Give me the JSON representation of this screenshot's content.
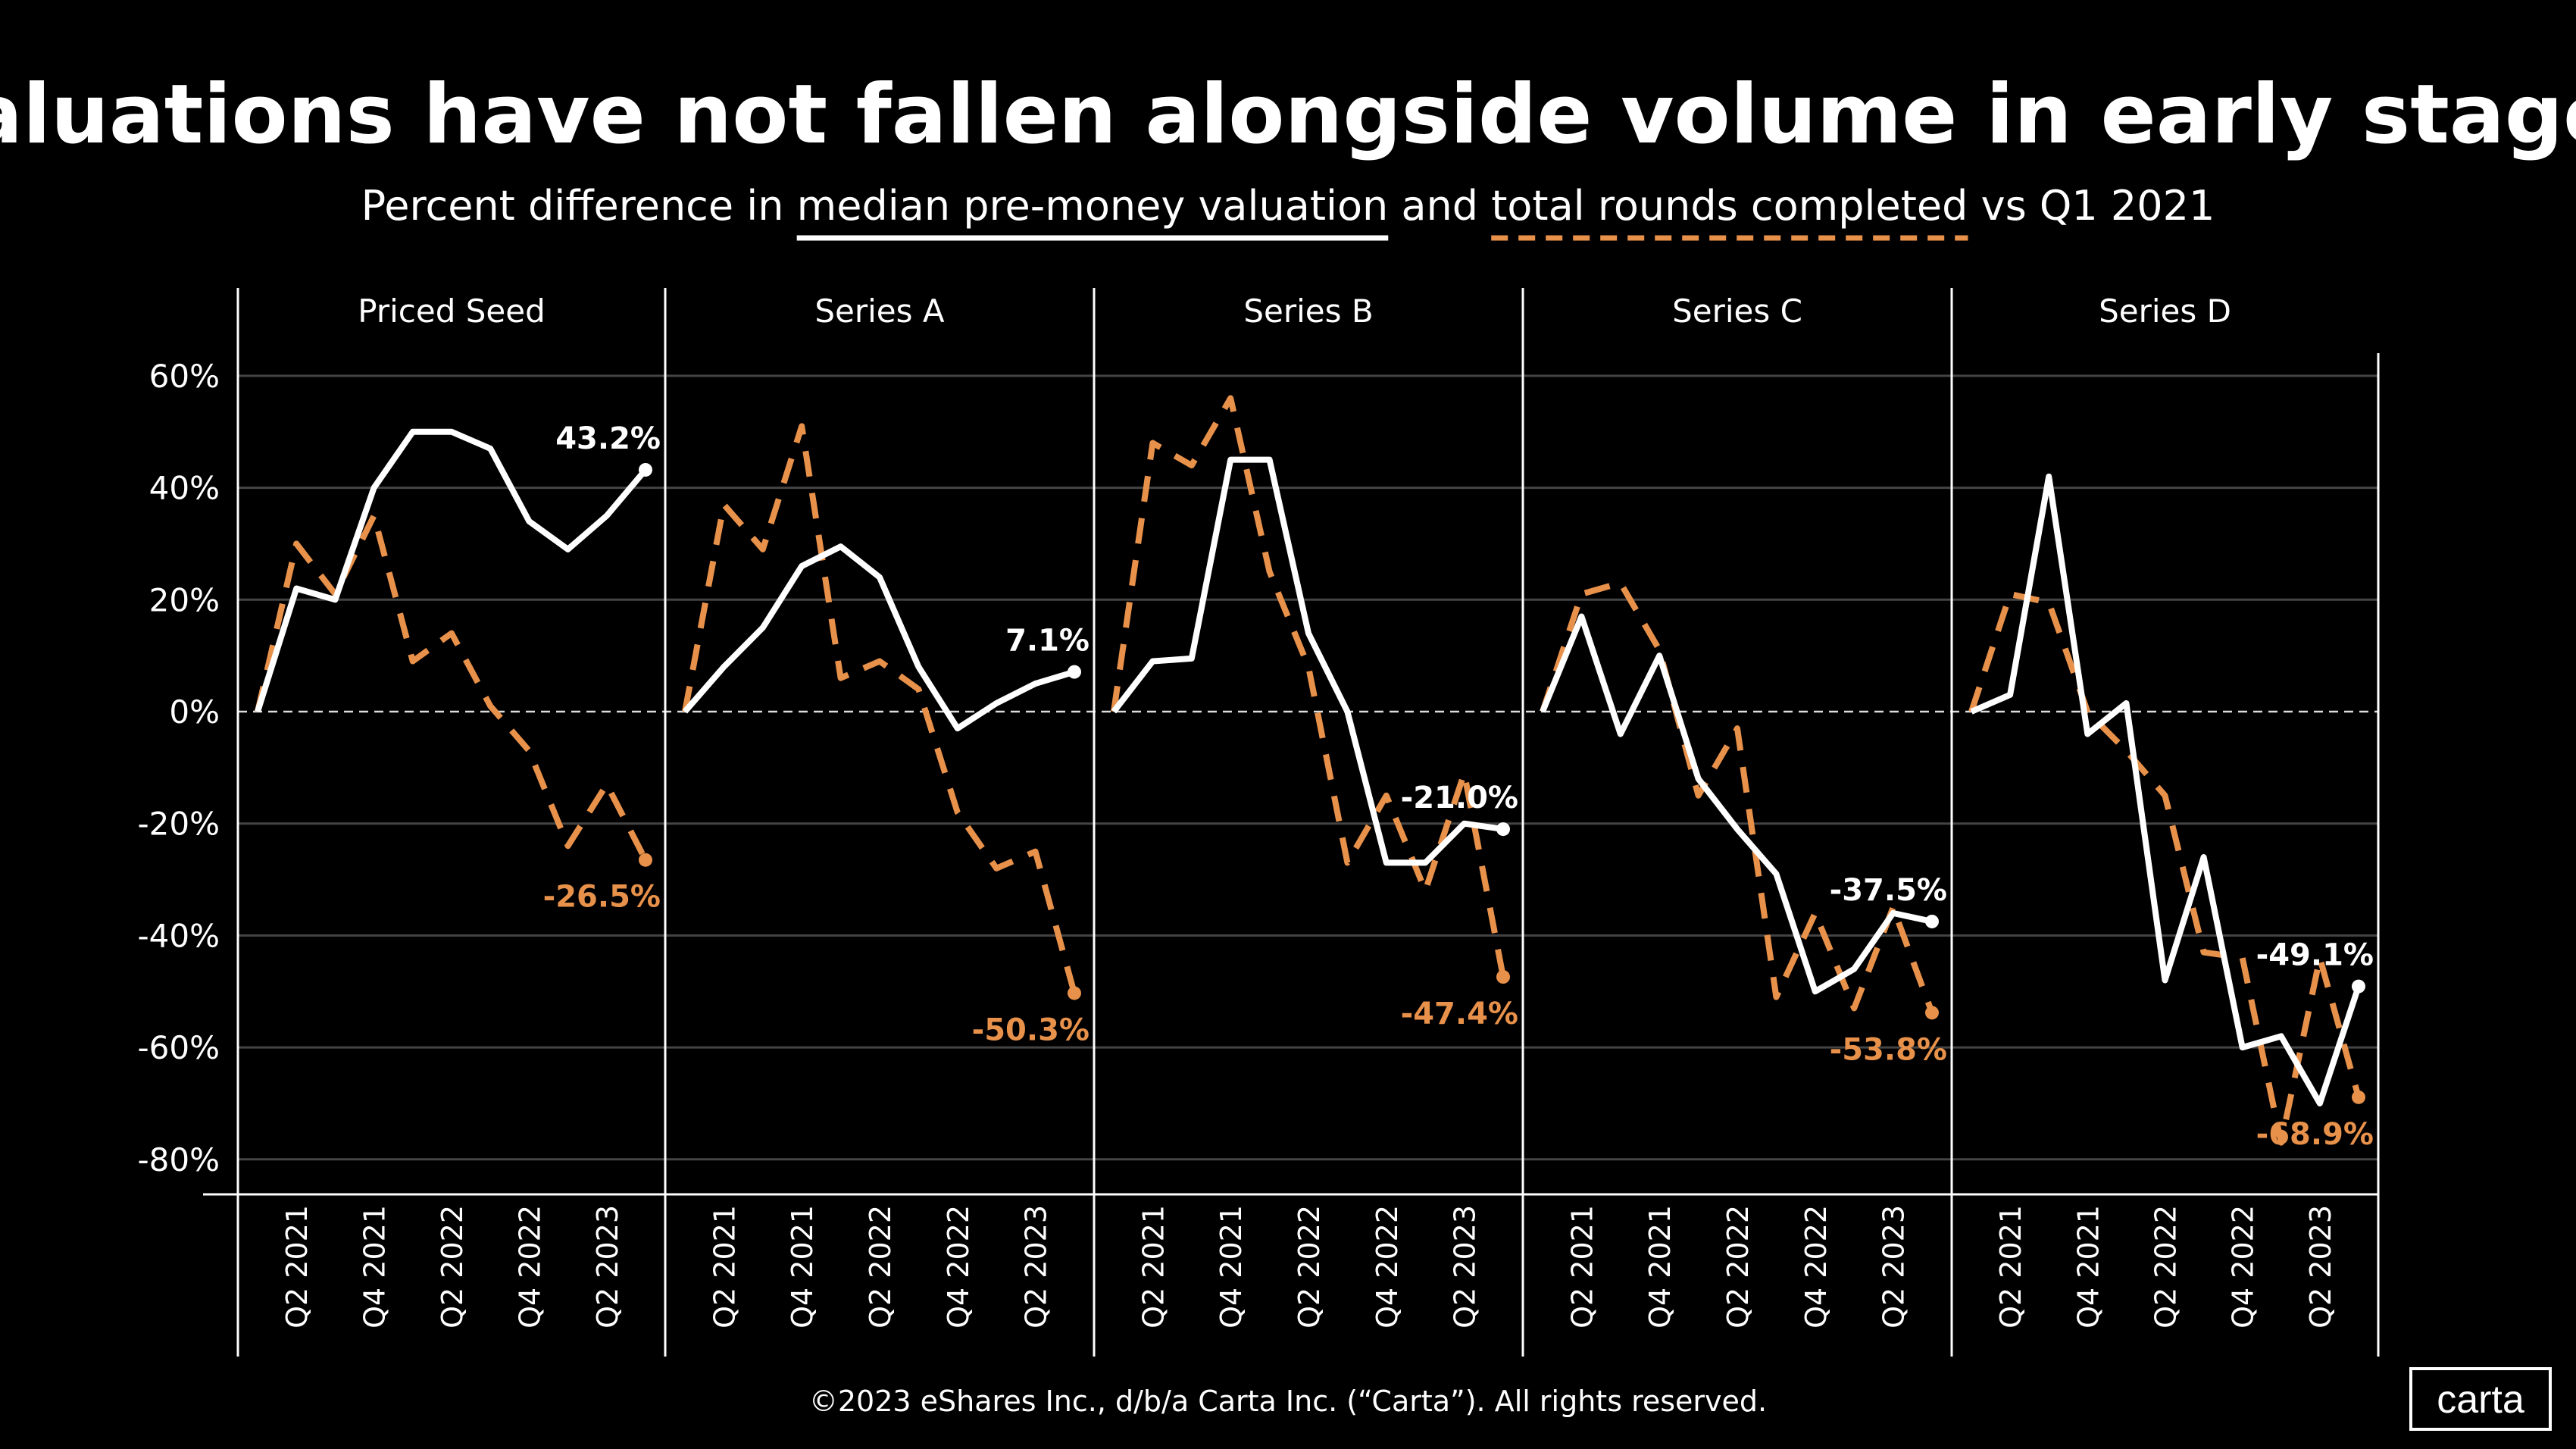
{
  "chart_data": {
    "type": "line",
    "title": "Valuations have not fallen alongside volume in early stages",
    "subtitle": {
      "prefix": "Percent difference in",
      "series1": "median pre-money valuation",
      "middle": "and",
      "series2": "total rounds completed",
      "suffix": "vs Q1 2021"
    },
    "colors": {
      "valuation": "#FFFFFF",
      "rounds": "#E8914A",
      "background": "#000000"
    },
    "x": [
      "Q1 2021",
      "Q2 2021",
      "Q3 2021",
      "Q4 2021",
      "Q1 2022",
      "Q2 2022",
      "Q3 2022",
      "Q4 2022",
      "Q1 2023",
      "Q2 2023",
      "Q3 2023"
    ],
    "x_tick_labels": [
      "Q2 2021",
      "Q4 2021",
      "Q2 2022",
      "Q4 2022",
      "Q2 2023"
    ],
    "y_ticks": [
      60,
      40,
      20,
      0,
      -20,
      -40,
      -60,
      -80
    ],
    "y_tick_labels": [
      "60%",
      "40%",
      "20%",
      "0%",
      "-20%",
      "-40%",
      "-60%",
      "-80%"
    ],
    "ylim": [
      -85,
      65
    ],
    "grid": true,
    "panels": [
      {
        "name": "Priced Seed",
        "valuation": [
          0,
          22,
          20,
          40,
          50,
          50,
          47,
          34,
          29,
          35,
          43.2
        ],
        "rounds": [
          0,
          30,
          21,
          35,
          9,
          14,
          1,
          -7,
          -24,
          -13,
          -26.5
        ],
        "valuation_label": "43.2%",
        "rounds_label": "-26.5%"
      },
      {
        "name": "Series A",
        "valuation": [
          0,
          8,
          15,
          26,
          29.5,
          24,
          8,
          -3,
          1.5,
          5,
          7.1
        ],
        "rounds": [
          0,
          37,
          29,
          51,
          6,
          9,
          4,
          -18,
          -28,
          -25,
          -50.3
        ],
        "valuation_label": "7.1%",
        "rounds_label": "-50.3%"
      },
      {
        "name": "Series B",
        "valuation": [
          0,
          9,
          9.5,
          45,
          45,
          14,
          0,
          -27,
          -27,
          -20,
          -21.0
        ],
        "rounds": [
          0,
          48,
          44,
          56,
          25,
          8,
          -27,
          -15,
          -32,
          -11,
          -47.4
        ],
        "valuation_label": "-21.0%",
        "rounds_label": "-47.4%"
      },
      {
        "name": "Series C",
        "valuation": [
          0,
          17,
          -4,
          10,
          -12,
          -21,
          -29,
          -50,
          -46,
          -36,
          -37.5
        ],
        "rounds": [
          0,
          21,
          23,
          11,
          -15,
          -3,
          -51,
          -36,
          -53,
          -35,
          -53.8
        ],
        "valuation_label": "-37.5%",
        "rounds_label": "-53.8%"
      },
      {
        "name": "Series D",
        "valuation": [
          0,
          3,
          42,
          -4,
          1.5,
          -48,
          -26,
          -60,
          -58,
          -70,
          -49.1
        ],
        "rounds": [
          0,
          21,
          19.5,
          0,
          -7,
          -15,
          -43,
          -44,
          -77,
          -44,
          -68.9
        ],
        "valuation_label": "-49.1%",
        "rounds_label": "-68.9%"
      }
    ]
  },
  "footer": "©2023 eShares Inc., d/b/a Carta Inc. (“Carta”). All rights reserved.",
  "logo": "carta"
}
